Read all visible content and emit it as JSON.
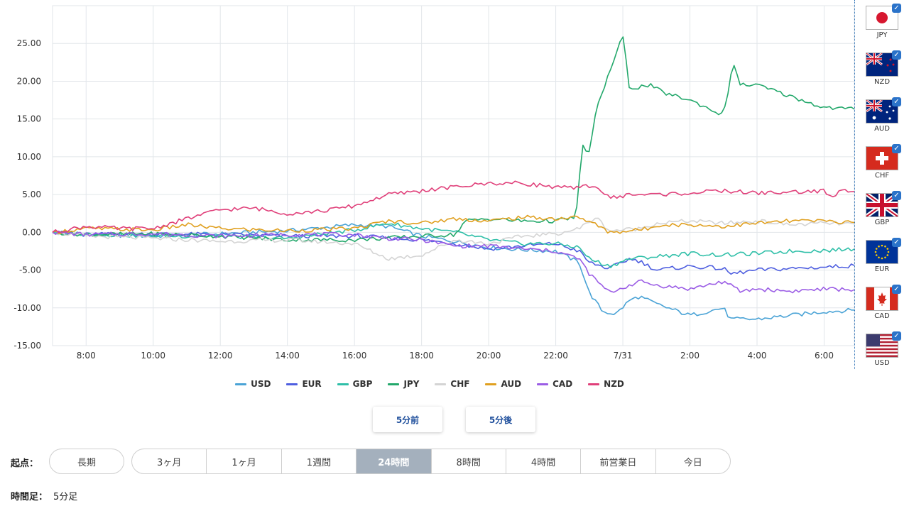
{
  "chart_data": {
    "type": "line",
    "title": "",
    "xlabel": "",
    "ylabel": "",
    "ylim": [
      -15,
      30
    ],
    "yticks": [
      "25.00",
      "20.00",
      "15.00",
      "10.00",
      "5.00",
      "0.00",
      "-5.00",
      "-10.00",
      "-15.00"
    ],
    "ytick_values": [
      25,
      20,
      15,
      10,
      5,
      0,
      -5,
      -10,
      -15
    ],
    "xticks": [
      "8:00",
      "10:00",
      "12:00",
      "14:00",
      "16:00",
      "18:00",
      "20:00",
      "22:00",
      "7/31",
      "2:00",
      "4:00",
      "6:00"
    ],
    "xtick_values": [
      8,
      10,
      12,
      14,
      16,
      18,
      20,
      22,
      24,
      26,
      28,
      30
    ],
    "xlim": [
      7,
      30.9
    ],
    "grid": true,
    "legend_position": "bottom",
    "series": [
      {
        "name": "USD",
        "color": "#4aa3d6",
        "points": [
          [
            7,
            0
          ],
          [
            8,
            -0.3
          ],
          [
            10,
            -0.5
          ],
          [
            12,
            -0.2
          ],
          [
            14,
            0.2
          ],
          [
            15,
            0.6
          ],
          [
            16,
            1.0
          ],
          [
            17,
            0.8
          ],
          [
            18,
            -0.5
          ],
          [
            19,
            -1.2
          ],
          [
            20,
            -2.0
          ],
          [
            21,
            -2.3
          ],
          [
            22,
            -2.5
          ],
          [
            22.7,
            -4.0
          ],
          [
            23.0,
            -8.0
          ],
          [
            23.4,
            -10.5
          ],
          [
            23.8,
            -10.8
          ],
          [
            24.2,
            -9.0
          ],
          [
            24.5,
            -8.5
          ],
          [
            25,
            -9.5
          ],
          [
            26,
            -11.0
          ],
          [
            27,
            -10.0
          ],
          [
            27.2,
            -11.5
          ],
          [
            28,
            -11.5
          ],
          [
            29,
            -11.0
          ],
          [
            30,
            -10.5
          ],
          [
            30.9,
            -10.3
          ]
        ]
      },
      {
        "name": "EUR",
        "color": "#4f5fe0",
        "points": [
          [
            7,
            0
          ],
          [
            8,
            -0.3
          ],
          [
            10,
            -0.2
          ],
          [
            12,
            -0.3
          ],
          [
            14,
            -0.5
          ],
          [
            16,
            -0.5
          ],
          [
            18,
            -1.0
          ],
          [
            19,
            -1.5
          ],
          [
            20,
            -2.2
          ],
          [
            21,
            -1.8
          ],
          [
            22,
            -1.5
          ],
          [
            22.7,
            -2.5
          ],
          [
            23.0,
            -4.0
          ],
          [
            23.6,
            -4.8
          ],
          [
            24.2,
            -3.5
          ],
          [
            24.5,
            -3.8
          ],
          [
            25,
            -5.0
          ],
          [
            26,
            -4.5
          ],
          [
            27,
            -4.8
          ],
          [
            27.2,
            -5.5
          ],
          [
            28,
            -5.0
          ],
          [
            29,
            -4.8
          ],
          [
            30,
            -4.6
          ],
          [
            30.9,
            -4.4
          ]
        ]
      },
      {
        "name": "GBP",
        "color": "#2fbfa8",
        "points": [
          [
            7,
            0
          ],
          [
            8,
            -0.2
          ],
          [
            10,
            -0.5
          ],
          [
            12,
            -0.5
          ],
          [
            14,
            -0.8
          ],
          [
            16,
            0.3
          ],
          [
            17,
            1.2
          ],
          [
            18,
            0.5
          ],
          [
            19,
            0
          ],
          [
            20,
            -1.0
          ],
          [
            21,
            -1.5
          ],
          [
            22,
            -1.5
          ],
          [
            22.7,
            -2.0
          ],
          [
            23.0,
            -3.5
          ],
          [
            23.6,
            -4.5
          ],
          [
            24.2,
            -3.5
          ],
          [
            25,
            -3.2
          ],
          [
            26,
            -2.8
          ],
          [
            27,
            -3.0
          ],
          [
            28,
            -2.8
          ],
          [
            29,
            -2.5
          ],
          [
            30,
            -2.4
          ],
          [
            30.9,
            -2.2
          ]
        ]
      },
      {
        "name": "JPY",
        "color": "#23a86b",
        "points": [
          [
            7,
            0
          ],
          [
            8,
            -0.3
          ],
          [
            10,
            -0.2
          ],
          [
            12,
            -0.5
          ],
          [
            14,
            -1.0
          ],
          [
            16,
            -1.0
          ],
          [
            18,
            -0.5
          ],
          [
            19,
            -0.3
          ],
          [
            19.3,
            1.5
          ],
          [
            20,
            1.8
          ],
          [
            21,
            1.5
          ],
          [
            22,
            1.5
          ],
          [
            22.6,
            2.0
          ],
          [
            22.8,
            11.5
          ],
          [
            23.0,
            10.5
          ],
          [
            23.2,
            16.0
          ],
          [
            23.5,
            20.0
          ],
          [
            24.0,
            26.0
          ],
          [
            24.2,
            19.0
          ],
          [
            24.8,
            19.5
          ],
          [
            25.2,
            18.5
          ],
          [
            26,
            17.5
          ],
          [
            26.5,
            16.5
          ],
          [
            27.0,
            15.5
          ],
          [
            27.3,
            22.5
          ],
          [
            27.5,
            19.5
          ],
          [
            28,
            19.5
          ],
          [
            29,
            18.0
          ],
          [
            30,
            16.5
          ],
          [
            30.9,
            16.3
          ]
        ]
      },
      {
        "name": "CHF",
        "color": "#d4d4d4",
        "points": [
          [
            7,
            0
          ],
          [
            8,
            -0.5
          ],
          [
            10,
            -0.8
          ],
          [
            12,
            -1.2
          ],
          [
            14,
            -1.0
          ],
          [
            16,
            -1.5
          ],
          [
            17,
            -3.5
          ],
          [
            18,
            -3.0
          ],
          [
            19,
            -1.0
          ],
          [
            20,
            -1.5
          ],
          [
            21,
            -0.5
          ],
          [
            22,
            -0.2
          ],
          [
            22.7,
            0.5
          ],
          [
            23.2,
            2.0
          ],
          [
            23.6,
            0.2
          ],
          [
            24.5,
            0.5
          ],
          [
            25,
            1.2
          ],
          [
            26,
            1.5
          ],
          [
            27,
            1.2
          ],
          [
            28,
            1.5
          ],
          [
            29,
            1.0
          ],
          [
            30,
            1.2
          ],
          [
            30.9,
            1.1
          ]
        ]
      },
      {
        "name": "AUD",
        "color": "#e0a020",
        "points": [
          [
            7,
            0
          ],
          [
            8,
            0.5
          ],
          [
            10,
            0.3
          ],
          [
            11,
            1.0
          ],
          [
            12,
            0.5
          ],
          [
            14,
            0.2
          ],
          [
            16,
            0.5
          ],
          [
            17,
            1.5
          ],
          [
            18,
            1.2
          ],
          [
            19,
            1.8
          ],
          [
            20,
            1.5
          ],
          [
            21,
            2.0
          ],
          [
            22,
            1.8
          ],
          [
            22.7,
            2.0
          ],
          [
            23.2,
            1.0
          ],
          [
            23.6,
            0
          ],
          [
            24.2,
            0.2
          ],
          [
            24.8,
            0.5
          ],
          [
            25,
            1.0
          ],
          [
            26,
            1.0
          ],
          [
            27,
            0.8
          ],
          [
            28,
            1.2
          ],
          [
            29,
            1.5
          ],
          [
            30,
            1.5
          ],
          [
            30.9,
            1.3
          ]
        ]
      },
      {
        "name": "CAD",
        "color": "#9b5de5",
        "points": [
          [
            7,
            0
          ],
          [
            8,
            -0.3
          ],
          [
            10,
            -0.2
          ],
          [
            12,
            -0.5
          ],
          [
            14,
            -0.3
          ],
          [
            16,
            -0.3
          ],
          [
            17,
            -0.8
          ],
          [
            18,
            -1.0
          ],
          [
            19,
            -1.8
          ],
          [
            20,
            -1.8
          ],
          [
            21,
            -2.2
          ],
          [
            22,
            -2.5
          ],
          [
            22.7,
            -3.5
          ],
          [
            23.0,
            -5.5
          ],
          [
            23.6,
            -8.0
          ],
          [
            24.2,
            -7.0
          ],
          [
            24.5,
            -6.5
          ],
          [
            25,
            -7.0
          ],
          [
            26,
            -7.5
          ],
          [
            27,
            -6.5
          ],
          [
            27.5,
            -7.8
          ],
          [
            28,
            -7.5
          ],
          [
            29,
            -7.8
          ],
          [
            30,
            -7.5
          ],
          [
            30.9,
            -7.6
          ]
        ]
      },
      {
        "name": "NZD",
        "color": "#e0407a",
        "points": [
          [
            7,
            0
          ],
          [
            8,
            0.8
          ],
          [
            9,
            0.5
          ],
          [
            10,
            0.5
          ],
          [
            11,
            1.8
          ],
          [
            12,
            3.0
          ],
          [
            13,
            3.2
          ],
          [
            14,
            2.5
          ],
          [
            15,
            2.8
          ],
          [
            16,
            3.5
          ],
          [
            17,
            5.0
          ],
          [
            18,
            5.5
          ],
          [
            19,
            6.0
          ],
          [
            20,
            6.5
          ],
          [
            21,
            6.5
          ],
          [
            22,
            6.0
          ],
          [
            22.6,
            5.8
          ],
          [
            23.0,
            6.2
          ],
          [
            23.3,
            5.8
          ],
          [
            23.6,
            4.5
          ],
          [
            24.2,
            5.0
          ],
          [
            25,
            5.0
          ],
          [
            26,
            5.2
          ],
          [
            27,
            5.5
          ],
          [
            28,
            5.2
          ],
          [
            29,
            5.3
          ],
          [
            30,
            5.5
          ],
          [
            30.2,
            4.5
          ],
          [
            30.5,
            5.5
          ],
          [
            30.9,
            5.4
          ]
        ]
      }
    ]
  },
  "flags": [
    {
      "code": "JPY",
      "checked": true
    },
    {
      "code": "NZD",
      "checked": true
    },
    {
      "code": "AUD",
      "checked": true
    },
    {
      "code": "CHF",
      "checked": true
    },
    {
      "code": "GBP",
      "checked": true
    },
    {
      "code": "EUR",
      "checked": true
    },
    {
      "code": "CAD",
      "checked": true
    },
    {
      "code": "USD",
      "checked": true
    }
  ],
  "controls": {
    "prev_label": "5分前",
    "next_label": "5分後",
    "period_label": "起点：",
    "period_long": "長期",
    "periods": [
      "3ヶ月",
      "1ヶ月",
      "1週間",
      "24時間",
      "8時間",
      "4時間",
      "前営業日",
      "今日"
    ],
    "active_period": "24時間",
    "timeframe_label": "時間足：",
    "timeframe_value": "5分足"
  }
}
